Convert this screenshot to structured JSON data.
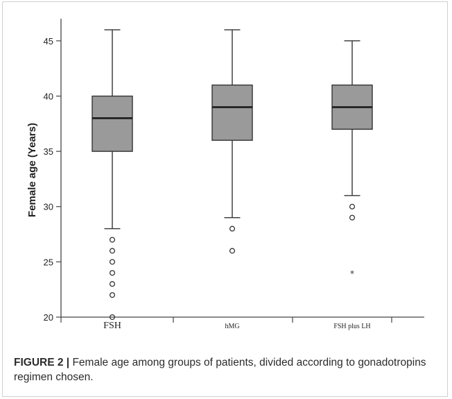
{
  "chart_data": {
    "type": "boxplot",
    "ylabel": "Female age (Years)",
    "ylim": [
      20,
      47
    ],
    "yticks": [
      20,
      25,
      30,
      35,
      40,
      45
    ],
    "categories": [
      "FSH",
      "hMG",
      "FSH plus LH"
    ],
    "boxes": [
      {
        "category": "FSH",
        "min": 28,
        "q1": 35,
        "median": 38,
        "q3": 40,
        "max": 46,
        "outliers": [
          27,
          26,
          25,
          24,
          23,
          22,
          20
        ],
        "extremes": []
      },
      {
        "category": "hMG",
        "min": 29,
        "q1": 36,
        "median": 39,
        "q3": 41,
        "max": 46,
        "outliers": [
          28,
          26
        ],
        "extremes": []
      },
      {
        "category": "FSH plus LH",
        "min": 31,
        "q1": 37,
        "median": 39,
        "q3": 41,
        "max": 45,
        "outliers": [
          30,
          29
        ],
        "extremes": [
          24
        ]
      }
    ],
    "colors": {
      "box_fill": "#9a9a9a",
      "line": "#333333",
      "median": "#1a1a1a"
    }
  },
  "caption": {
    "label": "FIGURE 2 |",
    "text": "Female age among groups of patients, divided according to gonadotropins regimen chosen."
  }
}
